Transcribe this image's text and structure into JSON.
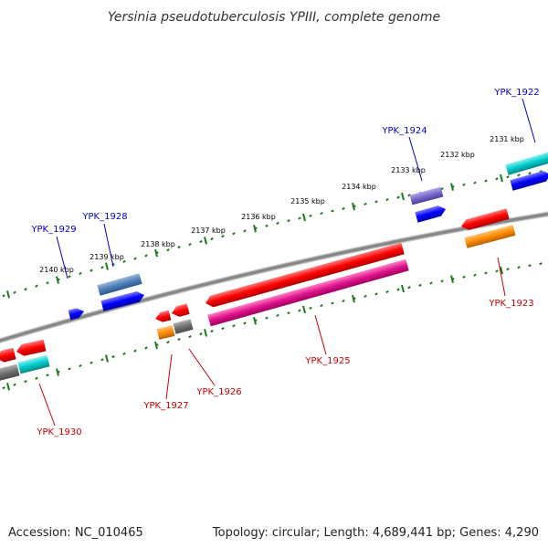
{
  "title": "Yersinia pseudotuberculosis YPIII, complete genome",
  "accession": "Accession: NC_010465",
  "topology": "Topology: circular; Length: 4,689,441 bp; Genes: 4,290",
  "ruler_ticks": [
    "2131 kbp",
    "2132 kbp",
    "2133 kbp",
    "2134 kbp",
    "2135 kbp",
    "2136 kbp",
    "2137 kbp",
    "2138 kbp",
    "2139 kbp",
    "2140 kbp"
  ],
  "genes": [
    {
      "name": "YPK_1922",
      "strand": "forward",
      "color": "#0000cc"
    },
    {
      "name": "YPK_1923",
      "strand": "reverse",
      "color": "#cc0000"
    },
    {
      "name": "YPK_1924",
      "strand": "forward",
      "color": "#0000cc"
    },
    {
      "name": "YPK_1925",
      "strand": "reverse",
      "color": "#cc0000"
    },
    {
      "name": "YPK_1926",
      "strand": "reverse",
      "color": "#cc0000"
    },
    {
      "name": "YPK_1927",
      "strand": "reverse",
      "color": "#cc0000"
    },
    {
      "name": "YPK_1928",
      "strand": "forward",
      "color": "#0000cc"
    },
    {
      "name": "YPK_1929",
      "strand": "forward",
      "color": "#0000cc"
    },
    {
      "name": "YPK_1930",
      "strand": "reverse",
      "color": "#cc0000"
    }
  ],
  "colors": {
    "backbone": "#888888",
    "ticks": "#1a7a1a",
    "cds_forward": "#0000ff",
    "cds_reverse": "#ff0000",
    "blue_grey": "#4f7fb8",
    "purple": "#7a6acb",
    "cyan": "#00cccc",
    "magenta": "#e0148c",
    "orange": "#ff8c00",
    "grey": "#707070",
    "label_forward": "#0000cc",
    "label_reverse": "#cc0000"
  }
}
